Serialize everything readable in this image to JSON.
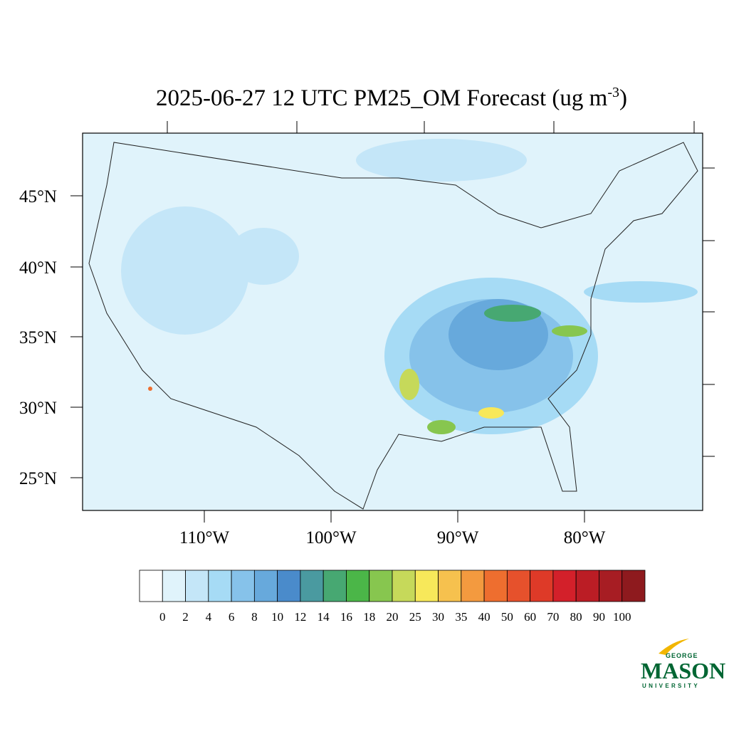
{
  "title": {
    "text": "2025-06-27 12 UTC PM25_OM Forecast (ug m",
    "superscript": "-3",
    "suffix": ")"
  },
  "map": {
    "lat_labels": [
      "45°N",
      "40°N",
      "35°N",
      "30°N",
      "25°N"
    ],
    "lon_labels": [
      "110°W",
      "100°W",
      "90°W",
      "80°W"
    ]
  },
  "colorbar": {
    "levels": [
      "0",
      "2",
      "4",
      "6",
      "8",
      "10",
      "12",
      "14",
      "16",
      "18",
      "20",
      "25",
      "30",
      "35",
      "40",
      "50",
      "60",
      "70",
      "80",
      "90",
      "100"
    ],
    "colors": [
      "#ffffff",
      "#e0f3fb",
      "#c4e6f8",
      "#a6dbf5",
      "#86c2ea",
      "#67a9dc",
      "#4a8bcb",
      "#4a9aa0",
      "#47a872",
      "#4bb648",
      "#87c64f",
      "#c6d95a",
      "#f7e85a",
      "#f6c14e",
      "#f39a3f",
      "#ee6e2f",
      "#e6512c",
      "#de3a28",
      "#d3202a",
      "#bb1d25",
      "#a71d23",
      "#8e1a1e"
    ]
  },
  "logo": {
    "top": "GEORGE",
    "main": "MASON",
    "bottom": "UNIVERSITY"
  }
}
